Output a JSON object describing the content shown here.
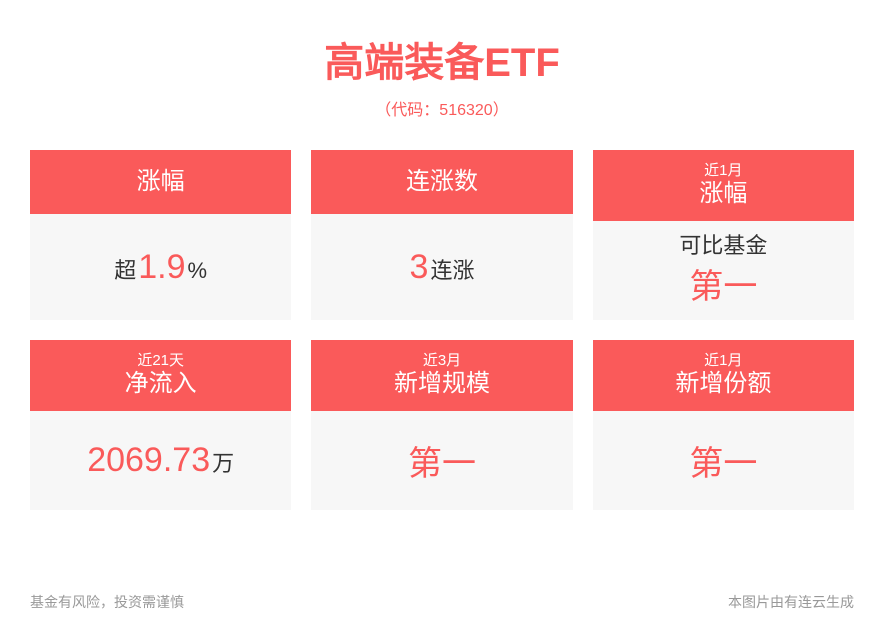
{
  "colors": {
    "accent": "#fa5a5a",
    "header_bg": "#fa5a5a",
    "body_bg": "#f7f7f7",
    "text_dark": "#333333",
    "text_muted": "#999999"
  },
  "header": {
    "title": "高端装备ETF",
    "subtitle": "（代码：516320）"
  },
  "cards": [
    {
      "header_small": "",
      "header_big": "涨幅",
      "body_top": "",
      "pre": "超",
      "value": "1.9",
      "suffix": "%",
      "pre_color": "#333333",
      "value_color": "#fa5a5a",
      "suffix_color": "#333333"
    },
    {
      "header_small": "",
      "header_big": "连涨数",
      "body_top": "",
      "pre": "",
      "value": "3",
      "suffix": "连涨",
      "pre_color": "#333333",
      "value_color": "#fa5a5a",
      "suffix_color": "#333333"
    },
    {
      "header_small": "近1月",
      "header_big": "涨幅",
      "body_top": "可比基金",
      "pre": "",
      "value": "第一",
      "suffix": "",
      "pre_color": "#333333",
      "value_color": "#fa5a5a",
      "suffix_color": "#333333"
    },
    {
      "header_small": "近21天",
      "header_big": "净流入",
      "body_top": "",
      "pre": "",
      "value": "2069.73",
      "suffix": "万",
      "pre_color": "#333333",
      "value_color": "#fa5a5a",
      "suffix_color": "#333333"
    },
    {
      "header_small": "近3月",
      "header_big": "新增规模",
      "body_top": "",
      "pre": "",
      "value": "第一",
      "suffix": "",
      "pre_color": "#333333",
      "value_color": "#fa5a5a",
      "suffix_color": "#333333"
    },
    {
      "header_small": "近1月",
      "header_big": "新增份额",
      "body_top": "",
      "pre": "",
      "value": "第一",
      "suffix": "",
      "pre_color": "#333333",
      "value_color": "#fa5a5a",
      "suffix_color": "#333333"
    }
  ],
  "footer": {
    "left": "基金有风险，投资需谨慎",
    "right": "本图片由有连云生成"
  }
}
